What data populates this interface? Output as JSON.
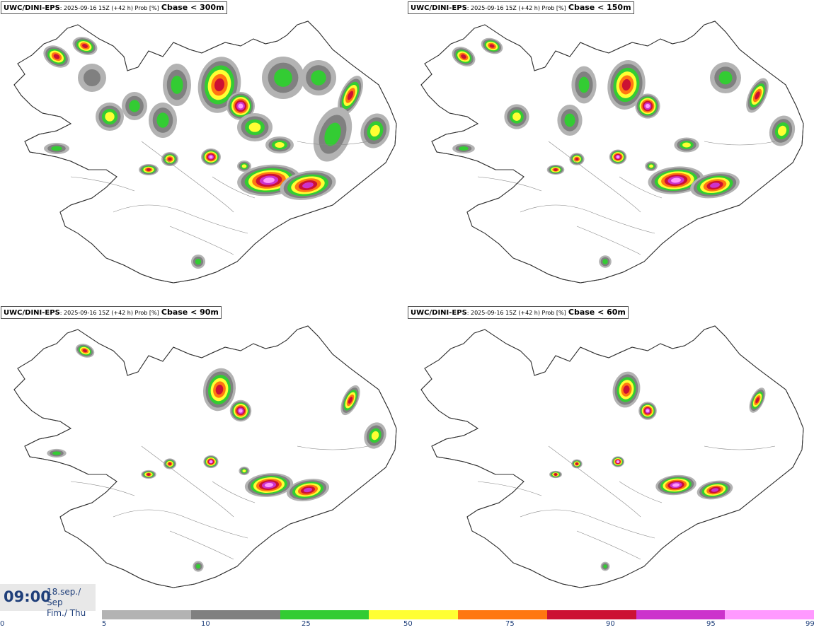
{
  "panels": [
    {
      "model": "UWC/DINI-EPS",
      "run": ": 2025-09-16 15Z (+42 h) Prob [%]",
      "threshold": "Cbase < 300m",
      "level": 4
    },
    {
      "model": "UWC/DINI-EPS",
      "run": ": 2025-09-16 15Z (+42 h) Prob [%]",
      "threshold": "Cbase < 150m",
      "level": 3
    },
    {
      "model": "UWC/DINI-EPS",
      "run": ": 2025-09-16 15Z (+42 h) Prob [%]",
      "threshold": "Cbase < 90m",
      "level": 2
    },
    {
      "model": "UWC/DINI-EPS",
      "run": ": 2025-09-16 15Z (+42 h) Prob [%]",
      "threshold": "Cbase < 60m",
      "level": 1
    }
  ],
  "valid_time": {
    "clock": "09:00",
    "date_line1": "18.sep./ Sep",
    "date_line2": "Fim./ Thu"
  },
  "legend": {
    "ticks": [
      "0",
      "5",
      "10",
      "25",
      "50",
      "75",
      "90",
      "95",
      "99"
    ],
    "colors": [
      "#b3b3b3",
      "#808080",
      "#33cc33",
      "#ffff33",
      "#ff7711",
      "#cc1133",
      "#cc33cc",
      "#ff99ff"
    ]
  }
}
